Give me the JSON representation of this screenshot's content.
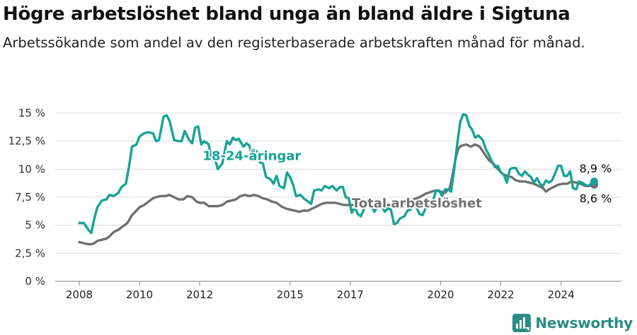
{
  "header": {
    "title": "Högre arbetslöshet bland unga än bland äldre i Sigtuna",
    "subtitle": "Arbetssökande som andel av den registerbaserade arbetskraften månad för månad."
  },
  "brand": {
    "name": "Newsworthy",
    "icon": "newsworthy-logo-icon"
  },
  "colors": {
    "youth": "#17a398",
    "total": "#707070",
    "grid": "#dcdcdc"
  },
  "chart_data": {
    "type": "line",
    "title": "Högre arbetslöshet bland unga än bland äldre i Sigtuna",
    "xlabel": "",
    "ylabel": "",
    "xlim": [
      2008,
      2025.3
    ],
    "ylim": [
      0,
      15
    ],
    "grid": true,
    "y_ticks": [
      {
        "value": 0,
        "label": "0 %"
      },
      {
        "value": 2.5,
        "label": "2,5 %"
      },
      {
        "value": 5,
        "label": "5 %"
      },
      {
        "value": 7.5,
        "label": "7,5 %"
      },
      {
        "value": 10,
        "label": "10 %"
      },
      {
        "value": 12.5,
        "label": "12,5 %"
      },
      {
        "value": 15,
        "label": "15 %"
      }
    ],
    "x_ticks": [
      {
        "value": 2008,
        "label": "2008"
      },
      {
        "value": 2010,
        "label": "2010"
      },
      {
        "value": 2012,
        "label": "2012"
      },
      {
        "value": 2015,
        "label": "2015"
      },
      {
        "value": 2017,
        "label": "2017"
      },
      {
        "value": 2020,
        "label": "2020"
      },
      {
        "value": 2022,
        "label": "2022"
      },
      {
        "value": 2024,
        "label": "2024"
      }
    ],
    "series": [
      {
        "name": "18-24-åringar",
        "label_at": [
          2012.1,
          10.8
        ],
        "end_label": "8,9 %",
        "points": [
          [
            2008.0,
            5.2
          ],
          [
            2008.15,
            5.2
          ],
          [
            2008.3,
            4.6
          ],
          [
            2008.4,
            4.3
          ],
          [
            2008.5,
            5.6
          ],
          [
            2008.6,
            6.6
          ],
          [
            2008.75,
            7.2
          ],
          [
            2008.9,
            7.3
          ],
          [
            2009.0,
            7.7
          ],
          [
            2009.15,
            7.6
          ],
          [
            2009.3,
            7.9
          ],
          [
            2009.4,
            8.4
          ],
          [
            2009.55,
            8.7
          ],
          [
            2009.65,
            10.2
          ],
          [
            2009.75,
            12.0
          ],
          [
            2009.9,
            12.2
          ],
          [
            2010.0,
            12.9
          ],
          [
            2010.15,
            13.2
          ],
          [
            2010.3,
            13.3
          ],
          [
            2010.45,
            13.2
          ],
          [
            2010.55,
            12.5
          ],
          [
            2010.65,
            12.6
          ],
          [
            2010.8,
            14.7
          ],
          [
            2010.9,
            14.8
          ],
          [
            2011.0,
            14.3
          ],
          [
            2011.15,
            12.6
          ],
          [
            2011.3,
            12.5
          ],
          [
            2011.4,
            12.5
          ],
          [
            2011.5,
            13.4
          ],
          [
            2011.65,
            12.6
          ],
          [
            2011.75,
            12.3
          ],
          [
            2011.85,
            13.7
          ],
          [
            2011.95,
            13.8
          ],
          [
            2012.05,
            12.2
          ],
          [
            2012.15,
            12.5
          ],
          [
            2012.3,
            12.2
          ],
          [
            2012.4,
            10.8
          ],
          [
            2012.5,
            11.0
          ],
          [
            2012.6,
            10.0
          ],
          [
            2012.75,
            10.5
          ],
          [
            2012.9,
            12.5
          ],
          [
            2013.0,
            12.2
          ],
          [
            2013.1,
            12.8
          ],
          [
            2013.2,
            12.6
          ],
          [
            2013.3,
            12.7
          ],
          [
            2013.45,
            12.0
          ],
          [
            2013.55,
            12.3
          ],
          [
            2013.65,
            12.1
          ],
          [
            2013.75,
            11.0
          ],
          [
            2013.9,
            11.6
          ],
          [
            2014.0,
            10.6
          ],
          [
            2014.1,
            10.5
          ],
          [
            2014.2,
            9.3
          ],
          [
            2014.35,
            9.1
          ],
          [
            2014.45,
            8.7
          ],
          [
            2014.55,
            9.4
          ],
          [
            2014.65,
            8.5
          ],
          [
            2014.8,
            8.3
          ],
          [
            2014.9,
            9.7
          ],
          [
            2015.0,
            9.3
          ],
          [
            2015.1,
            8.6
          ],
          [
            2015.2,
            7.6
          ],
          [
            2015.35,
            7.7
          ],
          [
            2015.45,
            7.4
          ],
          [
            2015.55,
            7.2
          ],
          [
            2015.7,
            6.9
          ],
          [
            2015.8,
            8.1
          ],
          [
            2015.95,
            8.2
          ],
          [
            2016.05,
            8.1
          ],
          [
            2016.15,
            8.5
          ],
          [
            2016.3,
            8.3
          ],
          [
            2016.4,
            8.5
          ],
          [
            2016.55,
            8.1
          ],
          [
            2016.65,
            8.4
          ],
          [
            2016.75,
            8.4
          ],
          [
            2016.85,
            7.5
          ],
          [
            2016.95,
            7.4
          ],
          [
            2017.05,
            6.1
          ],
          [
            2017.15,
            6.6
          ],
          [
            2017.25,
            6.0
          ],
          [
            2017.35,
            5.8
          ],
          [
            2017.45,
            6.4
          ],
          [
            2017.55,
            6.9
          ],
          [
            2017.7,
            6.7
          ],
          [
            2017.8,
            6.2
          ],
          [
            2017.9,
            6.6
          ],
          [
            2018.05,
            6.6
          ],
          [
            2018.15,
            6.2
          ],
          [
            2018.25,
            6.5
          ],
          [
            2018.35,
            6.4
          ],
          [
            2018.45,
            5.1
          ],
          [
            2018.55,
            5.2
          ],
          [
            2018.65,
            5.6
          ],
          [
            2018.8,
            5.8
          ],
          [
            2018.9,
            6.3
          ],
          [
            2019.0,
            6.4
          ],
          [
            2019.1,
            6.9
          ],
          [
            2019.2,
            6.6
          ],
          [
            2019.3,
            6.0
          ],
          [
            2019.4,
            5.9
          ],
          [
            2019.5,
            6.5
          ],
          [
            2019.6,
            6.7
          ],
          [
            2019.75,
            7.2
          ],
          [
            2019.85,
            8.1
          ],
          [
            2019.95,
            8.1
          ],
          [
            2020.05,
            7.6
          ],
          [
            2020.15,
            8.2
          ],
          [
            2020.25,
            8.2
          ],
          [
            2020.35,
            8.0
          ],
          [
            2020.45,
            10.0
          ],
          [
            2020.55,
            12.2
          ],
          [
            2020.65,
            14.2
          ],
          [
            2020.75,
            14.9
          ],
          [
            2020.85,
            14.8
          ],
          [
            2020.95,
            13.9
          ],
          [
            2021.05,
            13.5
          ],
          [
            2021.15,
            12.8
          ],
          [
            2021.25,
            13.0
          ],
          [
            2021.4,
            12.6
          ],
          [
            2021.5,
            11.8
          ],
          [
            2021.6,
            11.3
          ],
          [
            2021.7,
            10.7
          ],
          [
            2021.8,
            10.2
          ],
          [
            2021.9,
            10.3
          ],
          [
            2022.0,
            9.7
          ],
          [
            2022.1,
            9.5
          ],
          [
            2022.2,
            8.8
          ],
          [
            2022.3,
            10.0
          ],
          [
            2022.4,
            10.1
          ],
          [
            2022.5,
            10.1
          ],
          [
            2022.6,
            9.6
          ],
          [
            2022.7,
            9.4
          ],
          [
            2022.8,
            9.8
          ],
          [
            2022.9,
            9.5
          ],
          [
            2023.0,
            9.3
          ],
          [
            2023.1,
            8.8
          ],
          [
            2023.2,
            9.2
          ],
          [
            2023.3,
            8.7
          ],
          [
            2023.4,
            8.5
          ],
          [
            2023.5,
            9.0
          ],
          [
            2023.6,
            8.8
          ],
          [
            2023.7,
            9.0
          ],
          [
            2023.8,
            9.6
          ],
          [
            2023.9,
            10.3
          ],
          [
            2024.0,
            10.3
          ],
          [
            2024.1,
            9.4
          ],
          [
            2024.2,
            9.4
          ],
          [
            2024.3,
            9.8
          ],
          [
            2024.4,
            8.3
          ],
          [
            2024.5,
            8.2
          ],
          [
            2024.6,
            8.9
          ],
          [
            2024.7,
            8.8
          ],
          [
            2024.8,
            8.6
          ],
          [
            2024.9,
            8.5
          ],
          [
            2025.0,
            8.7
          ],
          [
            2025.1,
            8.9
          ]
        ]
      },
      {
        "name": "Total arbetslöshet",
        "label_at": [
          2017.05,
          6.6
        ],
        "end_label": "8,6 %",
        "points": [
          [
            2008.0,
            3.5
          ],
          [
            2008.15,
            3.4
          ],
          [
            2008.3,
            3.3
          ],
          [
            2008.4,
            3.3
          ],
          [
            2008.5,
            3.4
          ],
          [
            2008.6,
            3.6
          ],
          [
            2008.75,
            3.7
          ],
          [
            2008.9,
            3.8
          ],
          [
            2009.0,
            4.0
          ],
          [
            2009.15,
            4.4
          ],
          [
            2009.3,
            4.6
          ],
          [
            2009.45,
            4.9
          ],
          [
            2009.6,
            5.2
          ],
          [
            2009.75,
            5.9
          ],
          [
            2009.9,
            6.3
          ],
          [
            2010.0,
            6.6
          ],
          [
            2010.15,
            6.8
          ],
          [
            2010.3,
            7.1
          ],
          [
            2010.45,
            7.4
          ],
          [
            2010.55,
            7.5
          ],
          [
            2010.7,
            7.6
          ],
          [
            2010.85,
            7.6
          ],
          [
            2011.0,
            7.7
          ],
          [
            2011.15,
            7.5
          ],
          [
            2011.3,
            7.3
          ],
          [
            2011.45,
            7.3
          ],
          [
            2011.6,
            7.6
          ],
          [
            2011.75,
            7.5
          ],
          [
            2011.9,
            7.1
          ],
          [
            2012.0,
            7.0
          ],
          [
            2012.15,
            7.0
          ],
          [
            2012.3,
            6.7
          ],
          [
            2012.45,
            6.7
          ],
          [
            2012.6,
            6.7
          ],
          [
            2012.75,
            6.8
          ],
          [
            2012.9,
            7.1
          ],
          [
            2013.05,
            7.2
          ],
          [
            2013.2,
            7.3
          ],
          [
            2013.35,
            7.6
          ],
          [
            2013.5,
            7.7
          ],
          [
            2013.65,
            7.6
          ],
          [
            2013.8,
            7.7
          ],
          [
            2013.95,
            7.6
          ],
          [
            2014.1,
            7.4
          ],
          [
            2014.25,
            7.3
          ],
          [
            2014.4,
            7.1
          ],
          [
            2014.55,
            7.0
          ],
          [
            2014.7,
            6.7
          ],
          [
            2014.85,
            6.5
          ],
          [
            2015.0,
            6.4
          ],
          [
            2015.15,
            6.3
          ],
          [
            2015.3,
            6.2
          ],
          [
            2015.45,
            6.3
          ],
          [
            2015.6,
            6.3
          ],
          [
            2015.75,
            6.5
          ],
          [
            2015.9,
            6.7
          ],
          [
            2016.05,
            6.9
          ],
          [
            2016.2,
            7.0
          ],
          [
            2016.35,
            7.0
          ],
          [
            2016.5,
            7.0
          ],
          [
            2016.65,
            6.9
          ],
          [
            2016.8,
            6.8
          ],
          [
            2016.95,
            6.8
          ],
          [
            2017.1,
            6.8
          ],
          [
            2017.3,
            6.8
          ],
          [
            2017.5,
            6.8
          ],
          [
            2017.7,
            6.8
          ],
          [
            2017.9,
            6.8
          ],
          [
            2018.1,
            6.8
          ],
          [
            2018.3,
            6.8
          ],
          [
            2018.5,
            6.8
          ],
          [
            2018.7,
            6.9
          ],
          [
            2018.9,
            7.0
          ],
          [
            2019.1,
            7.3
          ],
          [
            2019.3,
            7.5
          ],
          [
            2019.5,
            7.8
          ],
          [
            2019.7,
            8.0
          ],
          [
            2019.85,
            8.1
          ],
          [
            2020.0,
            8.0
          ],
          [
            2020.15,
            7.9
          ],
          [
            2020.3,
            8.3
          ],
          [
            2020.4,
            9.5
          ],
          [
            2020.5,
            11.0
          ],
          [
            2020.6,
            11.9
          ],
          [
            2020.7,
            12.1
          ],
          [
            2020.85,
            12.2
          ],
          [
            2021.0,
            12.0
          ],
          [
            2021.15,
            12.2
          ],
          [
            2021.3,
            12.0
          ],
          [
            2021.45,
            11.4
          ],
          [
            2021.6,
            10.8
          ],
          [
            2021.75,
            10.5
          ],
          [
            2021.9,
            10.0
          ],
          [
            2022.05,
            9.6
          ],
          [
            2022.2,
            9.4
          ],
          [
            2022.35,
            9.3
          ],
          [
            2022.5,
            9.0
          ],
          [
            2022.65,
            8.9
          ],
          [
            2022.8,
            8.9
          ],
          [
            2022.95,
            8.8
          ],
          [
            2023.1,
            8.7
          ],
          [
            2023.25,
            8.5
          ],
          [
            2023.4,
            8.3
          ],
          [
            2023.5,
            8.0
          ],
          [
            2023.6,
            8.2
          ],
          [
            2023.75,
            8.4
          ],
          [
            2023.9,
            8.6
          ],
          [
            2024.05,
            8.7
          ],
          [
            2024.2,
            8.7
          ],
          [
            2024.35,
            8.9
          ],
          [
            2024.5,
            8.8
          ],
          [
            2024.65,
            8.7
          ],
          [
            2024.8,
            8.5
          ],
          [
            2024.95,
            8.5
          ],
          [
            2025.1,
            8.6
          ]
        ]
      }
    ]
  }
}
